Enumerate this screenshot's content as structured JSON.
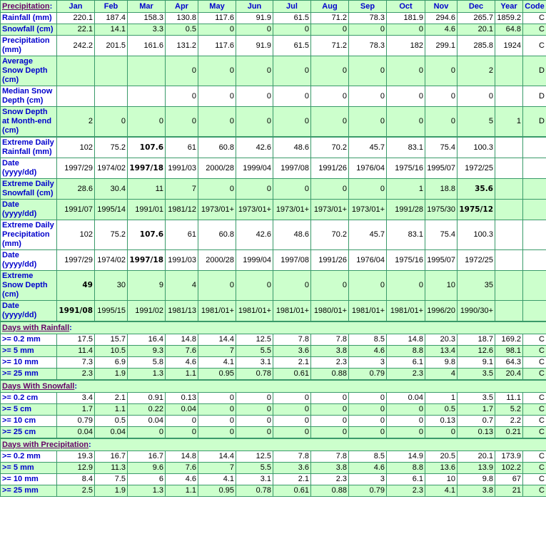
{
  "header": {
    "title": "Precipitation",
    "months": [
      "Jan",
      "Feb",
      "Mar",
      "Apr",
      "May",
      "Jun",
      "Jul",
      "Aug",
      "Sep",
      "Oct",
      "Nov",
      "Dec"
    ],
    "year_label": "Year",
    "code_label": "Code"
  },
  "colors": {
    "row_green": "#ccffcc",
    "border": "#3a9a6a",
    "label_blue": "#0000cc",
    "section_purple": "#660066"
  },
  "sections": [
    {
      "title": null,
      "rows": [
        {
          "label": "Rainfall (mm)",
          "values": [
            "220.1",
            "187.4",
            "158.3",
            "130.8",
            "117.6",
            "91.9",
            "61.5",
            "71.2",
            "78.3",
            "181.9",
            "294.6",
            "265.7"
          ],
          "year": "1859.2",
          "code": "C",
          "bold": []
        },
        {
          "label": "Snowfall (cm)",
          "values": [
            "22.1",
            "14.1",
            "3.3",
            "0.5",
            "0",
            "0",
            "0",
            "0",
            "0",
            "0",
            "4.6",
            "20.1"
          ],
          "year": "64.8",
          "code": "C",
          "bold": []
        },
        {
          "label": "Precipitation (mm)",
          "values": [
            "242.2",
            "201.5",
            "161.6",
            "131.2",
            "117.6",
            "91.9",
            "61.5",
            "71.2",
            "78.3",
            "182",
            "299.1",
            "285.8"
          ],
          "year": "1924",
          "code": "C",
          "bold": []
        },
        {
          "label": "Average Snow Depth (cm)",
          "values": [
            "",
            "",
            "",
            "0",
            "0",
            "0",
            "0",
            "0",
            "0",
            "0",
            "0",
            "2"
          ],
          "year": "",
          "code": "D",
          "bold": []
        },
        {
          "label": "Median Snow Depth (cm)",
          "values": [
            "",
            "",
            "",
            "0",
            "0",
            "0",
            "0",
            "0",
            "0",
            "0",
            "0",
            "0"
          ],
          "year": "",
          "code": "D",
          "bold": []
        },
        {
          "label": "Snow Depth at Month-end (cm)",
          "values": [
            "2",
            "0",
            "0",
            "0",
            "0",
            "0",
            "0",
            "0",
            "0",
            "0",
            "0",
            "5"
          ],
          "year": "1",
          "code": "D",
          "bold": []
        }
      ]
    },
    {
      "title": null,
      "rows": [
        {
          "label": "Extreme Daily Rainfall (mm)",
          "values": [
            "102",
            "75.2",
            "107.6",
            "61",
            "60.8",
            "42.6",
            "48.6",
            "70.2",
            "45.7",
            "83.1",
            "75.4",
            "100.3"
          ],
          "year": "",
          "code": "",
          "bold": [
            2
          ]
        },
        {
          "label": "Date (yyyy/dd)",
          "values": [
            "1997/29",
            "1974/02",
            "1997/18",
            "1991/03",
            "2000/28",
            "1999/04",
            "1997/08",
            "1991/26",
            "1976/04",
            "1975/16",
            "1995/07",
            "1972/25"
          ],
          "year": "",
          "code": "",
          "bold": [
            2
          ]
        },
        {
          "label": "Extreme Daily Snowfall (cm)",
          "values": [
            "28.6",
            "30.4",
            "11",
            "7",
            "0",
            "0",
            "0",
            "0",
            "0",
            "1",
            "18.8",
            "35.6"
          ],
          "year": "",
          "code": "",
          "bold": [
            11
          ]
        },
        {
          "label": "Date (yyyy/dd)",
          "values": [
            "1991/07",
            "1995/14",
            "1991/01",
            "1981/12",
            "1973/01+",
            "1973/01+",
            "1973/01+",
            "1973/01+",
            "1973/01+",
            "1991/28",
            "1975/30",
            "1975/12"
          ],
          "year": "",
          "code": "",
          "bold": [
            11
          ]
        },
        {
          "label": "Extreme Daily Precipitation (mm)",
          "values": [
            "102",
            "75.2",
            "107.6",
            "61",
            "60.8",
            "42.6",
            "48.6",
            "70.2",
            "45.7",
            "83.1",
            "75.4",
            "100.3"
          ],
          "year": "",
          "code": "",
          "bold": [
            2
          ]
        },
        {
          "label": "Date (yyyy/dd)",
          "values": [
            "1997/29",
            "1974/02",
            "1997/18",
            "1991/03",
            "2000/28",
            "1999/04",
            "1997/08",
            "1991/26",
            "1976/04",
            "1975/16",
            "1995/07",
            "1972/25"
          ],
          "year": "",
          "code": "",
          "bold": [
            2
          ]
        },
        {
          "label": "Extreme Snow Depth (cm)",
          "values": [
            "49",
            "30",
            "9",
            "4",
            "0",
            "0",
            "0",
            "0",
            "0",
            "0",
            "10",
            "35"
          ],
          "year": "",
          "code": "",
          "bold": [
            0
          ]
        },
        {
          "label": "Date (yyyy/dd)",
          "values": [
            "1991/08",
            "1995/15",
            "1991/02",
            "1981/13",
            "1981/01+",
            "1981/01+",
            "1981/01+",
            "1980/01+",
            "1981/01+",
            "1981/01+",
            "1996/20",
            "1990/30+"
          ],
          "year": "",
          "code": "",
          "bold": [
            0
          ]
        }
      ]
    },
    {
      "title": "Days with Rainfall",
      "rows": [
        {
          "label": ">= 0.2 mm",
          "values": [
            "17.5",
            "15.7",
            "16.4",
            "14.8",
            "14.4",
            "12.5",
            "7.8",
            "7.8",
            "8.5",
            "14.8",
            "20.3",
            "18.7"
          ],
          "year": "169.2",
          "code": "C",
          "bold": []
        },
        {
          "label": ">= 5 mm",
          "values": [
            "11.4",
            "10.5",
            "9.3",
            "7.6",
            "7",
            "5.5",
            "3.6",
            "3.8",
            "4.6",
            "8.8",
            "13.4",
            "12.6"
          ],
          "year": "98.1",
          "code": "C",
          "bold": []
        },
        {
          "label": ">= 10 mm",
          "values": [
            "7.3",
            "6.9",
            "5.8",
            "4.6",
            "4.1",
            "3.1",
            "2.1",
            "2.3",
            "3",
            "6.1",
            "9.8",
            "9.1"
          ],
          "year": "64.3",
          "code": "C",
          "bold": []
        },
        {
          "label": ">= 25 mm",
          "values": [
            "2.3",
            "1.9",
            "1.3",
            "1.1",
            "0.95",
            "0.78",
            "0.61",
            "0.88",
            "0.79",
            "2.3",
            "4",
            "3.5"
          ],
          "year": "20.4",
          "code": "C",
          "bold": []
        }
      ]
    },
    {
      "title": "Days With Snowfall",
      "rows": [
        {
          "label": ">= 0.2 cm",
          "values": [
            "3.4",
            "2.1",
            "0.91",
            "0.13",
            "0",
            "0",
            "0",
            "0",
            "0",
            "0.04",
            "1",
            "3.5"
          ],
          "year": "11.1",
          "code": "C",
          "bold": []
        },
        {
          "label": ">= 5 cm",
          "values": [
            "1.7",
            "1.1",
            "0.22",
            "0.04",
            "0",
            "0",
            "0",
            "0",
            "0",
            "0",
            "0.5",
            "1.7"
          ],
          "year": "5.2",
          "code": "C",
          "bold": []
        },
        {
          "label": ">= 10 cm",
          "values": [
            "0.79",
            "0.5",
            "0.04",
            "0",
            "0",
            "0",
            "0",
            "0",
            "0",
            "0",
            "0.13",
            "0.7"
          ],
          "year": "2.2",
          "code": "C",
          "bold": []
        },
        {
          "label": ">= 25 cm",
          "values": [
            "0.04",
            "0.04",
            "0",
            "0",
            "0",
            "0",
            "0",
            "0",
            "0",
            "0",
            "0",
            "0.13"
          ],
          "year": "0.21",
          "code": "C",
          "bold": []
        }
      ]
    },
    {
      "title": "Days with Precipitation",
      "rows": [
        {
          "label": ">= 0.2 mm",
          "values": [
            "19.3",
            "16.7",
            "16.7",
            "14.8",
            "14.4",
            "12.5",
            "7.8",
            "7.8",
            "8.5",
            "14.9",
            "20.5",
            "20.1"
          ],
          "year": "173.9",
          "code": "C",
          "bold": []
        },
        {
          "label": ">= 5 mm",
          "values": [
            "12.9",
            "11.3",
            "9.6",
            "7.6",
            "7",
            "5.5",
            "3.6",
            "3.8",
            "4.6",
            "8.8",
            "13.6",
            "13.9"
          ],
          "year": "102.2",
          "code": "C",
          "bold": []
        },
        {
          "label": ">= 10 mm",
          "values": [
            "8.4",
            "7.5",
            "6",
            "4.6",
            "4.1",
            "3.1",
            "2.1",
            "2.3",
            "3",
            "6.1",
            "10",
            "9.8"
          ],
          "year": "67",
          "code": "C",
          "bold": []
        },
        {
          "label": ">= 25 mm",
          "values": [
            "2.5",
            "1.9",
            "1.3",
            "1.1",
            "0.95",
            "0.78",
            "0.61",
            "0.88",
            "0.79",
            "2.3",
            "4.1",
            "3.8"
          ],
          "year": "21",
          "code": "C",
          "bold": []
        }
      ]
    }
  ],
  "separator": ":"
}
